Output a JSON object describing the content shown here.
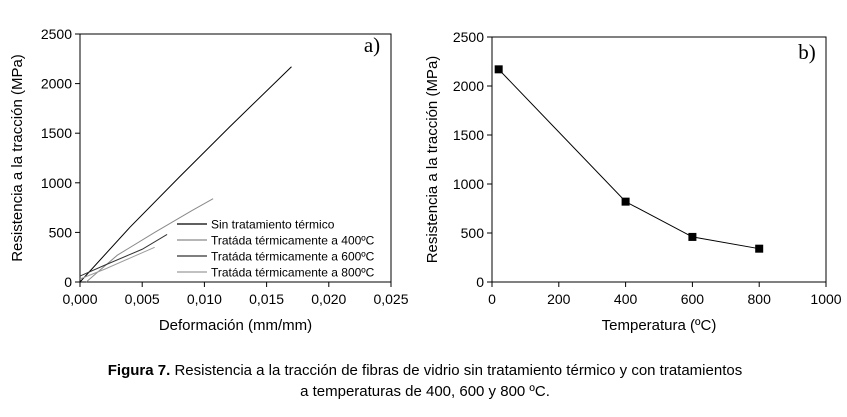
{
  "chart_data": [
    {
      "type": "line",
      "panel_label": "a)",
      "x_label": "Deformación (mm/mm)",
      "y_label": "Resistencia a la tracción (MPa)",
      "xlim": [
        0,
        0.025
      ],
      "xticks": [
        {
          "value": 0,
          "label": "0,000"
        },
        {
          "value": 0.005,
          "label": "0,005"
        },
        {
          "value": 0.01,
          "label": "0,010"
        },
        {
          "value": 0.015,
          "label": "0,015"
        },
        {
          "value": 0.02,
          "label": "0,020"
        },
        {
          "value": 0.025,
          "label": "0,025"
        }
      ],
      "ylim": [
        0,
        2500
      ],
      "yticks": [
        0,
        500,
        1000,
        1500,
        2000,
        2500
      ],
      "legend": "lower right",
      "series": [
        {
          "name": "Sin tratamiento térmico",
          "color": "#000000",
          "x": [
            0,
            0.004,
            0.008,
            0.012,
            0.017
          ],
          "values": [
            0,
            550,
            1060,
            1560,
            2170
          ]
        },
        {
          "name": "Tratáda térmicamente a 400ºC",
          "color": "#8a8a8a",
          "x": [
            0.0005,
            0.003,
            0.006,
            0.009,
            0.0107
          ],
          "values": [
            0,
            270,
            500,
            720,
            840
          ]
        },
        {
          "name": "Tratáda térmicamente a 600ºC",
          "color": "#333333",
          "x": [
            0,
            0.002,
            0.005,
            0.007
          ],
          "values": [
            60,
            170,
            330,
            480
          ]
        },
        {
          "name": "Tratáda térmicamente a 800ºC",
          "color": "#9c9c9c",
          "x": [
            0,
            0.002,
            0.004,
            0.006
          ],
          "values": [
            30,
            130,
            240,
            350
          ]
        }
      ]
    },
    {
      "type": "line",
      "panel_label": "b)",
      "x_label": "Temperatura (ºC)",
      "y_label": "Resistencia a la tracción (MPa)",
      "xlim": [
        0,
        1000
      ],
      "xticks": [
        0,
        200,
        400,
        600,
        800,
        1000
      ],
      "ylim": [
        0,
        2500
      ],
      "yticks": [
        0,
        500,
        1000,
        1500,
        2000,
        2500
      ],
      "marker": "square",
      "color": "#000000",
      "x": [
        20,
        400,
        600,
        800
      ],
      "values": [
        2170,
        820,
        460,
        340
      ]
    }
  ],
  "caption": {
    "label": "Figura 7.",
    "lines": [
      "Resistencia a la tracción de fibras de vidrio sin tratamiento térmico y con tratamientos",
      "a temperaturas de 400, 600 y 800 ºC."
    ]
  }
}
